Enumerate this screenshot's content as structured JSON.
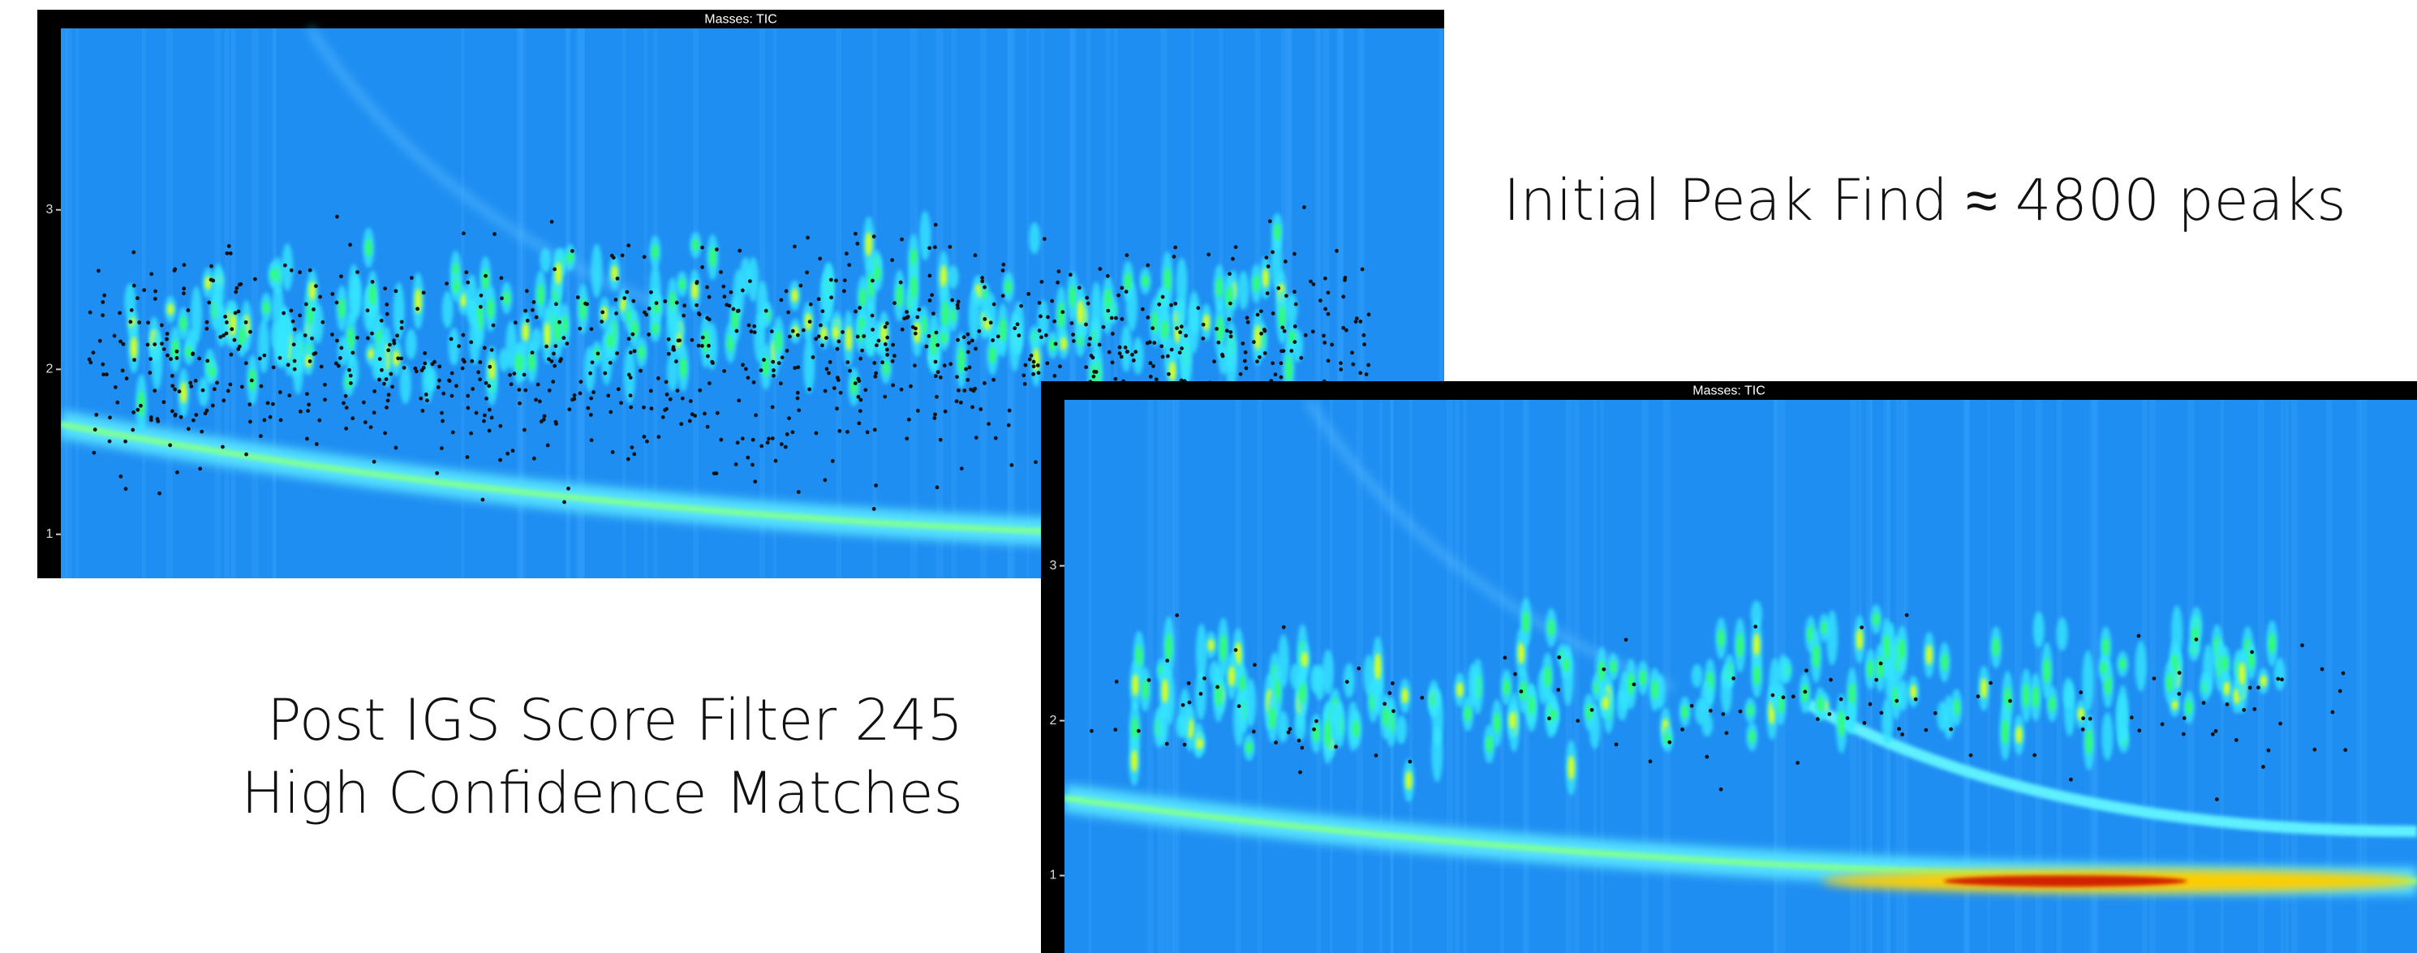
{
  "panels": [
    {
      "title": "Masses: TIC",
      "yticks": [
        "1",
        "2",
        "3"
      ]
    },
    {
      "title": "Masses: TIC",
      "yticks": [
        "1",
        "2",
        "3"
      ]
    }
  ],
  "captions": {
    "initial": "Initial Peak Find ≈ 4800 peaks",
    "filtered": [
      "Post IGS Score Filter 245",
      "High Confidence Matches"
    ]
  }
}
